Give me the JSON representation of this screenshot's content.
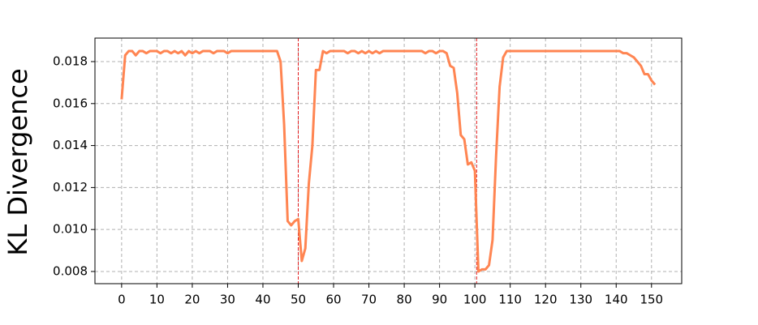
{
  "chart_data": {
    "type": "line",
    "ylabel": "KL Divergence",
    "x": [
      0,
      1,
      2,
      3,
      4,
      5,
      6,
      7,
      8,
      9,
      10,
      11,
      12,
      13,
      14,
      15,
      16,
      17,
      18,
      19,
      20,
      21,
      22,
      23,
      24,
      25,
      26,
      27,
      28,
      29,
      30,
      31,
      32,
      33,
      34,
      35,
      36,
      37,
      38,
      39,
      40,
      41,
      42,
      43,
      44,
      45,
      46,
      47,
      48,
      49,
      50,
      51,
      52,
      53,
      54,
      55,
      56,
      57,
      58,
      59,
      60,
      61,
      62,
      63,
      64,
      65,
      66,
      67,
      68,
      69,
      70,
      71,
      72,
      73,
      74,
      75,
      76,
      77,
      78,
      79,
      80,
      81,
      82,
      83,
      84,
      85,
      86,
      87,
      88,
      89,
      90,
      91,
      92,
      93,
      94,
      95,
      96,
      97,
      98,
      99,
      100,
      101,
      102,
      103,
      104,
      105,
      106,
      107,
      108,
      109,
      110,
      111,
      112,
      113,
      114,
      115,
      116,
      117,
      118,
      119,
      120,
      121,
      122,
      123,
      124,
      125,
      126,
      127,
      128,
      129,
      130,
      131,
      132,
      133,
      134,
      135,
      136,
      137,
      138,
      139,
      140,
      141,
      142,
      143,
      144,
      145,
      146,
      147,
      148,
      149,
      150,
      151
    ],
    "series": [
      {
        "color": "#ff8552",
        "values": [
          0.0162,
          0.0183,
          0.0185,
          0.0185,
          0.0183,
          0.0185,
          0.0185,
          0.0184,
          0.0185,
          0.0185,
          0.0185,
          0.0184,
          0.0185,
          0.0185,
          0.0184,
          0.0185,
          0.0184,
          0.0185,
          0.0183,
          0.0185,
          0.0184,
          0.0185,
          0.0184,
          0.0185,
          0.0185,
          0.0185,
          0.0184,
          0.0185,
          0.0185,
          0.0185,
          0.0184,
          0.0185,
          0.0185,
          0.0185,
          0.0185,
          0.0185,
          0.0185,
          0.0185,
          0.0185,
          0.0185,
          0.0185,
          0.0185,
          0.0185,
          0.0185,
          0.0185,
          0.018,
          0.015,
          0.0104,
          0.0102,
          0.0104,
          0.0105,
          0.0085,
          0.0091,
          0.0122,
          0.014,
          0.0176,
          0.0176,
          0.0185,
          0.0184,
          0.0185,
          0.0185,
          0.0185,
          0.0185,
          0.0185,
          0.0184,
          0.0185,
          0.0185,
          0.0184,
          0.0185,
          0.0184,
          0.0185,
          0.0184,
          0.0185,
          0.0184,
          0.0185,
          0.0185,
          0.0185,
          0.0185,
          0.0185,
          0.0185,
          0.0185,
          0.0185,
          0.0185,
          0.0185,
          0.0185,
          0.0185,
          0.0184,
          0.0185,
          0.0185,
          0.0184,
          0.0185,
          0.0185,
          0.0184,
          0.0178,
          0.0177,
          0.0165,
          0.0145,
          0.0143,
          0.0131,
          0.0132,
          0.0128,
          0.008,
          0.0081,
          0.0081,
          0.0083,
          0.0095,
          0.0135,
          0.0168,
          0.0182,
          0.0185,
          0.0185,
          0.0185,
          0.0185,
          0.0185,
          0.0185,
          0.0185,
          0.0185,
          0.0185,
          0.0185,
          0.0185,
          0.0185,
          0.0185,
          0.0185,
          0.0185,
          0.0185,
          0.0185,
          0.0185,
          0.0185,
          0.0185,
          0.0185,
          0.0185,
          0.0185,
          0.0185,
          0.0185,
          0.0185,
          0.0185,
          0.0185,
          0.0185,
          0.0185,
          0.0185,
          0.0185,
          0.0185,
          0.0184,
          0.0184,
          0.0183,
          0.0182,
          0.018,
          0.0178,
          0.0174,
          0.0174,
          0.0171,
          0.0169
        ]
      }
    ],
    "vlines": [
      50,
      100.5
    ],
    "vline_color": "#e31a1c",
    "xlim": [
      -7.55,
      158.55
    ],
    "xticks": [
      0,
      10,
      20,
      30,
      40,
      50,
      60,
      70,
      80,
      90,
      100,
      110,
      120,
      130,
      140,
      150
    ],
    "ylim": [
      0.00742,
      0.01912
    ],
    "yticks": [
      0.008,
      {
        "value": 0.01,
        "label": "0.010"
      },
      0.012,
      0.014,
      0.016,
      0.018
    ],
    "grid": true
  }
}
